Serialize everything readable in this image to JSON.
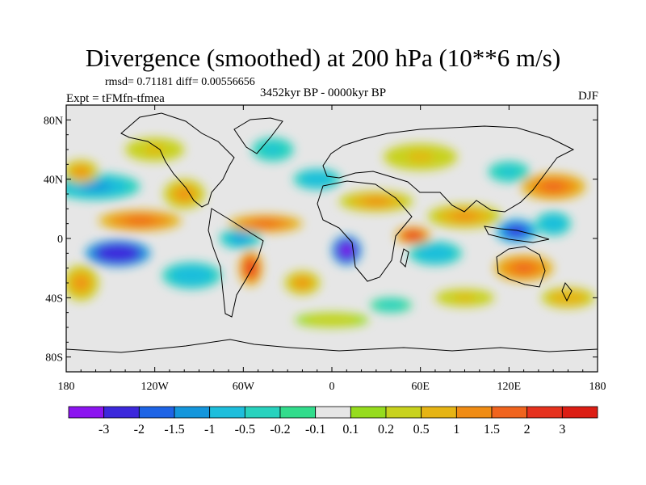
{
  "chart_data": {
    "type": "heatmap",
    "title": "Divergence (smoothed) at 200 hPa (10**6 m/s)",
    "stats": "rmsd= 0.71181 diff= 0.00556656",
    "experiment": "Expt = tFMfn-tfmea",
    "period": "3452kyr BP - 0000kyr BP",
    "season": "DJF",
    "xlim": [
      -180,
      180
    ],
    "ylim": [
      -90,
      90
    ],
    "x_ticks": [
      {
        "value": -180,
        "label": "180"
      },
      {
        "value": -120,
        "label": "120W"
      },
      {
        "value": -60,
        "label": "60W"
      },
      {
        "value": 0,
        "label": "0"
      },
      {
        "value": 60,
        "label": "60E"
      },
      {
        "value": 120,
        "label": "120E"
      },
      {
        "value": 180,
        "label": "180"
      }
    ],
    "y_ticks": [
      {
        "value": 80,
        "label": "80N"
      },
      {
        "value": 40,
        "label": "40N"
      },
      {
        "value": 0,
        "label": "0"
      },
      {
        "value": -40,
        "label": "40S"
      },
      {
        "value": -80,
        "label": "80S"
      }
    ],
    "colorbar": {
      "levels": [
        "-3",
        "-2",
        "-1.5",
        "-1",
        "-0.5",
        "-0.2",
        "-0.1",
        "0.1",
        "0.2",
        "0.5",
        "1",
        "1.5",
        "2",
        "3"
      ],
      "colors": [
        "#8c14f0",
        "#3c28dc",
        "#1e64e6",
        "#1496dc",
        "#1ebedc",
        "#28d2be",
        "#32dc8c",
        "#e6e6e6",
        "#96dc1e",
        "#c8d21e",
        "#e6b414",
        "#f08c14",
        "#f0641e",
        "#e6321e",
        "#dc1e14"
      ]
    },
    "anomalies": [
      {
        "lon": -145,
        "lat": -10,
        "value": -3.0,
        "rx": 22,
        "ry": 9
      },
      {
        "lon": 10,
        "lat": -8,
        "value": -3.2,
        "rx": 10,
        "ry": 10
      },
      {
        "lon": 125,
        "lat": 5,
        "value": -2.2,
        "rx": 14,
        "ry": 8
      },
      {
        "lon": -62,
        "lat": 0,
        "value": -1.4,
        "rx": 14,
        "ry": 7
      },
      {
        "lon": -160,
        "lat": 35,
        "value": -1.3,
        "rx": 30,
        "ry": 9
      },
      {
        "lon": -10,
        "lat": 40,
        "value": -0.9,
        "rx": 16,
        "ry": 7
      },
      {
        "lon": -40,
        "lat": 60,
        "value": -0.6,
        "rx": 14,
        "ry": 8
      },
      {
        "lon": 150,
        "lat": 10,
        "value": -1.0,
        "rx": 12,
        "ry": 8
      },
      {
        "lon": 70,
        "lat": -10,
        "value": -0.8,
        "rx": 18,
        "ry": 8
      },
      {
        "lon": -95,
        "lat": -25,
        "value": -0.9,
        "rx": 20,
        "ry": 9
      },
      {
        "lon": 120,
        "lat": 45,
        "value": -0.6,
        "rx": 14,
        "ry": 7
      },
      {
        "lon": 40,
        "lat": -45,
        "value": -0.5,
        "rx": 14,
        "ry": 5
      },
      {
        "lon": -130,
        "lat": 12,
        "value": 1.8,
        "rx": 28,
        "ry": 7
      },
      {
        "lon": -45,
        "lat": 10,
        "value": 1.5,
        "rx": 25,
        "ry": 6
      },
      {
        "lon": 55,
        "lat": 2,
        "value": 2.2,
        "rx": 12,
        "ry": 6
      },
      {
        "lon": 90,
        "lat": 15,
        "value": 1.4,
        "rx": 25,
        "ry": 8
      },
      {
        "lon": 150,
        "lat": 35,
        "value": 1.6,
        "rx": 22,
        "ry": 9
      },
      {
        "lon": -55,
        "lat": -20,
        "value": 2.2,
        "rx": 8,
        "ry": 12
      },
      {
        "lon": 130,
        "lat": -20,
        "value": 1.5,
        "rx": 20,
        "ry": 9
      },
      {
        "lon": -170,
        "lat": 45,
        "value": 1.0,
        "rx": 12,
        "ry": 8
      },
      {
        "lon": -100,
        "lat": 30,
        "value": 1.2,
        "rx": 14,
        "ry": 10
      },
      {
        "lon": 30,
        "lat": 25,
        "value": 1.0,
        "rx": 25,
        "ry": 7
      },
      {
        "lon": -20,
        "lat": -30,
        "value": 1.0,
        "rx": 12,
        "ry": 8
      },
      {
        "lon": 160,
        "lat": -40,
        "value": 0.8,
        "rx": 18,
        "ry": 7
      },
      {
        "lon": -170,
        "lat": -30,
        "value": 1.0,
        "rx": 12,
        "ry": 12
      },
      {
        "lon": 60,
        "lat": 55,
        "value": 0.7,
        "rx": 25,
        "ry": 9
      },
      {
        "lon": -120,
        "lat": 60,
        "value": 0.6,
        "rx": 20,
        "ry": 8
      },
      {
        "lon": 90,
        "lat": -40,
        "value": 0.6,
        "rx": 20,
        "ry": 6
      },
      {
        "lon": 0,
        "lat": -55,
        "value": 0.4,
        "rx": 25,
        "ry": 5
      }
    ]
  }
}
